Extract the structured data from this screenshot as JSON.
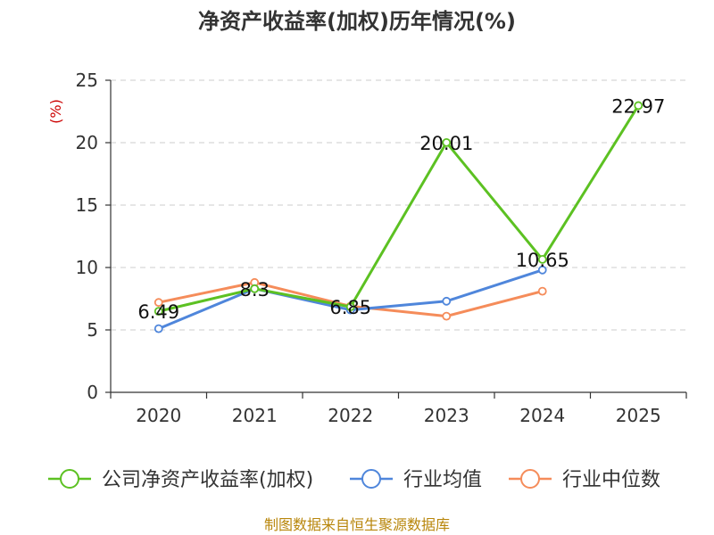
{
  "chart_data": {
    "type": "line",
    "title": "净资产收益率(加权)历年情况(%)",
    "ylabel": "(%)",
    "xlabel": "",
    "categories": [
      "2020",
      "2021",
      "2022",
      "2023",
      "2024",
      "2025"
    ],
    "ylim": [
      0,
      25
    ],
    "yticks": [
      0,
      5,
      10,
      15,
      20,
      25
    ],
    "grid": true,
    "legend_position": "bottom",
    "series": [
      {
        "name": "公司净资产收益率(加权)",
        "color": "#5cc122",
        "values": [
          6.49,
          8.3,
          6.85,
          20.01,
          10.65,
          22.97
        ],
        "labels": [
          "6.49",
          "8.3",
          "6.85",
          "20.01",
          "10.65",
          "22.97"
        ]
      },
      {
        "name": "行业均值",
        "color": "#4f86db",
        "values": [
          5.1,
          8.3,
          6.6,
          7.3,
          9.8,
          null
        ]
      },
      {
        "name": "行业中位数",
        "color": "#f58c5a",
        "values": [
          7.2,
          8.8,
          6.9,
          6.1,
          8.1,
          null
        ]
      }
    ],
    "source": "制图数据来自恒生聚源数据库"
  },
  "colors": {
    "ylabel": "#cc0000",
    "source": "#b8860b",
    "axis": "#333333",
    "grid": "#cccccc"
  }
}
